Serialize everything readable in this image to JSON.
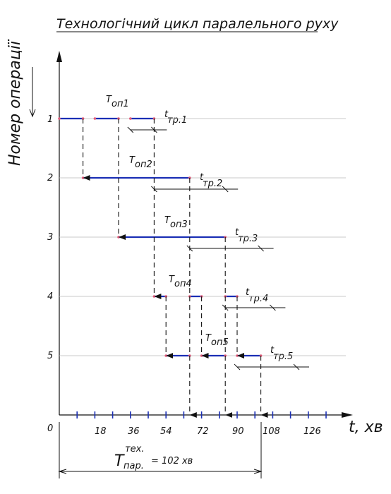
{
  "title": "Технологічний цикл паралельного руху",
  "axes": {
    "y_label": "Номер операції",
    "x_label": "t, хв",
    "origin": "0",
    "x_ticks": [
      "18",
      "36",
      "54",
      "72",
      "90",
      "108",
      "126"
    ],
    "y_ticks": [
      "1",
      "2",
      "3",
      "4",
      "5"
    ]
  },
  "operation_labels": [
    {
      "main": "T",
      "sub": "оп1"
    },
    {
      "main": "T",
      "sub": "оп2"
    },
    {
      "main": "T",
      "sub": "оп3"
    },
    {
      "main": "T",
      "sub": "оп4"
    },
    {
      "main": "T",
      "sub": "оп5"
    }
  ],
  "transport_labels": [
    {
      "main": "t",
      "sub": "тр.1"
    },
    {
      "main": "t",
      "sub": "тр.2"
    },
    {
      "main": "t",
      "sub": "тр.3"
    },
    {
      "main": "t",
      "sub": "тр.4"
    },
    {
      "main": "t",
      "sub": "тр.5"
    }
  ],
  "total_cycle": {
    "main": "T",
    "sup": "тех.",
    "sub": "пар.",
    "value": "= 102 хв"
  },
  "colors": {
    "bar": "#1a2fb5",
    "line": "#111111",
    "grid": "#b8b8b8",
    "marker": "#e05a7a"
  },
  "chart_data": {
    "type": "gantt",
    "x_unit": "хв",
    "total_minutes": 102,
    "operations": [
      {
        "op": 1,
        "segments": [
          [
            0,
            12
          ],
          [
            18,
            30
          ],
          [
            36,
            48
          ]
        ],
        "transfer_after": [
          36,
          48
        ]
      },
      {
        "op": 2,
        "segments": [
          [
            12,
            66
          ]
        ],
        "transfer_after": [
          48,
          84
        ]
      },
      {
        "op": 3,
        "segments": [
          [
            30,
            84
          ]
        ],
        "transfer_after": [
          66,
          102
        ]
      },
      {
        "op": 4,
        "segments": [
          [
            48,
            54
          ],
          [
            66,
            72
          ],
          [
            84,
            90
          ]
        ],
        "transfer_after": [
          84,
          108
        ]
      },
      {
        "op": 5,
        "segments": [
          [
            54,
            66
          ],
          [
            72,
            84
          ],
          [
            90,
            102
          ]
        ],
        "transfer_after": [
          90,
          120
        ]
      }
    ],
    "arrows": [
      {
        "x": 12,
        "from": 1,
        "to": 2
      },
      {
        "x": 30,
        "from": 1,
        "to": 3
      },
      {
        "x": 48,
        "from": 1,
        "to": 4
      },
      {
        "x": 54,
        "from": 4,
        "to": 5
      },
      {
        "x": 66,
        "from": 2,
        "to": 6
      },
      {
        "x": 84,
        "from": 3,
        "to": 6
      },
      {
        "x": 102,
        "from": 5,
        "to": 6
      },
      {
        "x": 72,
        "from": 4,
        "to": 5
      },
      {
        "x": 90,
        "from": 4,
        "to": 5
      }
    ]
  }
}
